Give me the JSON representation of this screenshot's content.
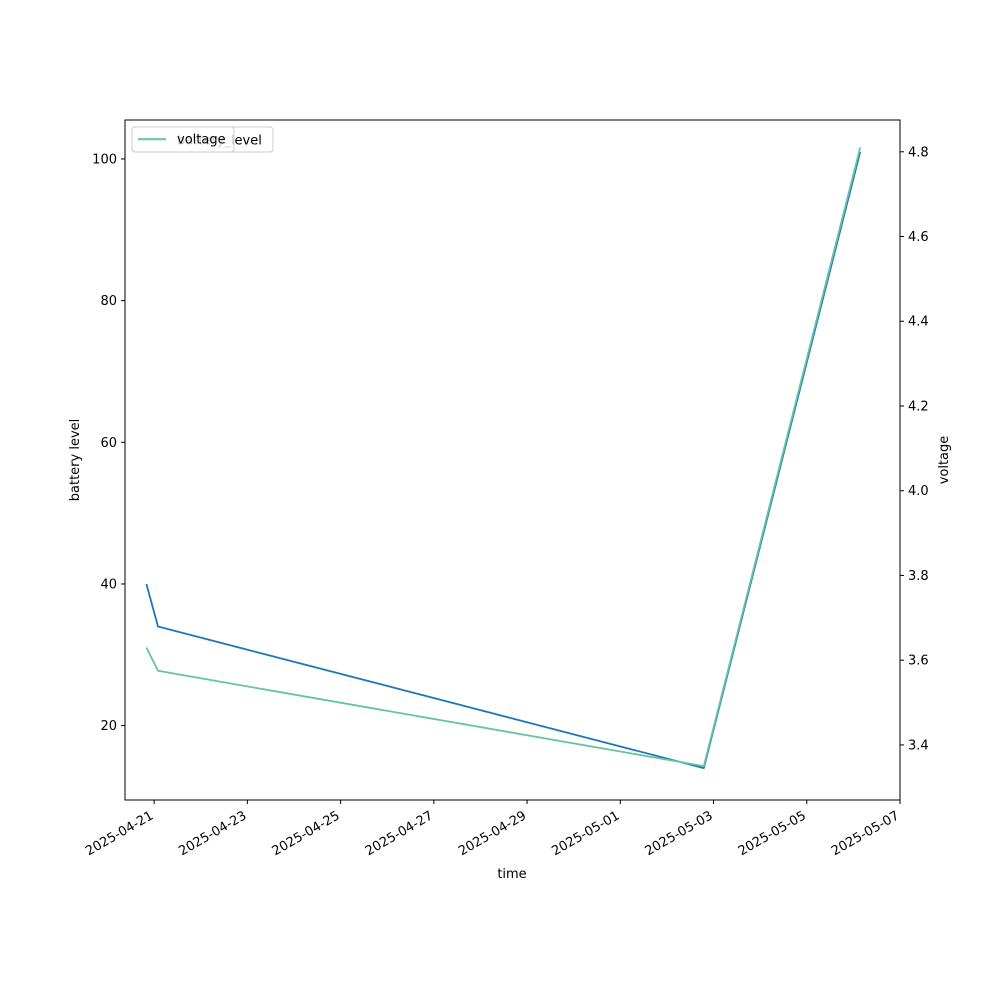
{
  "chart_data": {
    "type": "line",
    "title": "",
    "xlabel": "time",
    "ylabel_left": "battery level",
    "ylabel_right": "voltage",
    "x_axis": {
      "kind": "date",
      "range": [
        "2025-04-20T09:00",
        "2025-05-07T00:00"
      ],
      "tick_labels": [
        "2025-04-21",
        "2025-04-23",
        "2025-04-25",
        "2025-04-27",
        "2025-04-29",
        "2025-05-01",
        "2025-05-03",
        "2025-05-05",
        "2025-05-07"
      ]
    },
    "y_left": {
      "range": [
        9.5,
        105.5
      ],
      "ticks": [
        20,
        40,
        60,
        80,
        100
      ]
    },
    "y_right": {
      "range": [
        3.27,
        4.875
      ],
      "ticks": [
        3.4,
        3.6,
        3.8,
        4.0,
        4.2,
        4.4,
        4.6,
        4.8
      ]
    },
    "legend": {
      "placement": "upper-left",
      "entries": [
        "battery_level",
        "voltage"
      ]
    },
    "series": [
      {
        "name": "battery_level",
        "axis": "left",
        "color": "#1f77b4",
        "points": [
          {
            "x": "2025-04-20T20:00",
            "y": 40
          },
          {
            "x": "2025-04-21T02:00",
            "y": 34
          },
          {
            "x": "2025-05-02T19:00",
            "y": 14
          },
          {
            "x": "2025-05-06T03:30",
            "y": 101
          }
        ]
      },
      {
        "name": "voltage",
        "axis": "right",
        "color": "#66c2a5",
        "points": [
          {
            "x": "2025-04-20T20:00",
            "y": 3.63
          },
          {
            "x": "2025-04-21T02:00",
            "y": 3.575
          },
          {
            "x": "2025-05-02T19:00",
            "y": 3.35
          },
          {
            "x": "2025-05-06T03:30",
            "y": 4.81
          }
        ]
      }
    ]
  }
}
